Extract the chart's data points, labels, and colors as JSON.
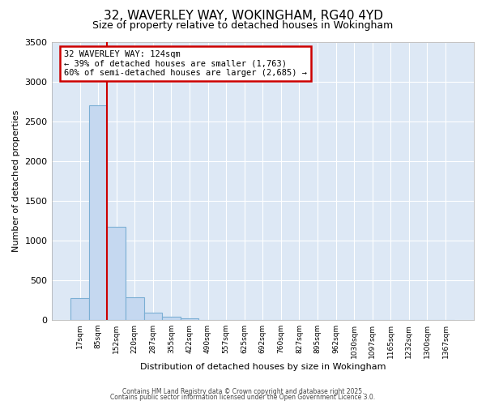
{
  "title_line1": "32, WAVERLEY WAY, WOKINGHAM, RG40 4YD",
  "title_line2": "Size of property relative to detached houses in Wokingham",
  "xlabel": "Distribution of detached houses by size in Wokingham",
  "ylabel": "Number of detached properties",
  "bar_labels": [
    "17sqm",
    "85sqm",
    "152sqm",
    "220sqm",
    "287sqm",
    "355sqm",
    "422sqm",
    "490sqm",
    "557sqm",
    "625sqm",
    "692sqm",
    "760sqm",
    "827sqm",
    "895sqm",
    "962sqm",
    "1030sqm",
    "1097sqm",
    "1165sqm",
    "1232sqm",
    "1300sqm",
    "1367sqm"
  ],
  "bar_values": [
    270,
    2700,
    1175,
    280,
    90,
    38,
    18,
    0,
    0,
    0,
    0,
    0,
    0,
    0,
    0,
    0,
    0,
    0,
    0,
    0,
    0
  ],
  "bar_fill_color": "#c5d8f0",
  "bar_edge_color": "#7bafd4",
  "figure_bg_color": "#ffffff",
  "plot_bg_color": "#dde8f5",
  "grid_color": "#ffffff",
  "annotation_box_color": "#ffffff",
  "annotation_border_color": "#cc0000",
  "red_line_color": "#cc0000",
  "red_line_x": 1.5,
  "annotation_text_line1": "32 WAVERLEY WAY: 124sqm",
  "annotation_text_line2": "← 39% of detached houses are smaller (1,763)",
  "annotation_text_line3": "60% of semi-detached houses are larger (2,685) →",
  "ylim": [
    0,
    3500
  ],
  "yticks": [
    0,
    500,
    1000,
    1500,
    2000,
    2500,
    3000,
    3500
  ],
  "footer_line1": "Contains HM Land Registry data © Crown copyright and database right 2025.",
  "footer_line2": "Contains public sector information licensed under the Open Government Licence 3.0."
}
